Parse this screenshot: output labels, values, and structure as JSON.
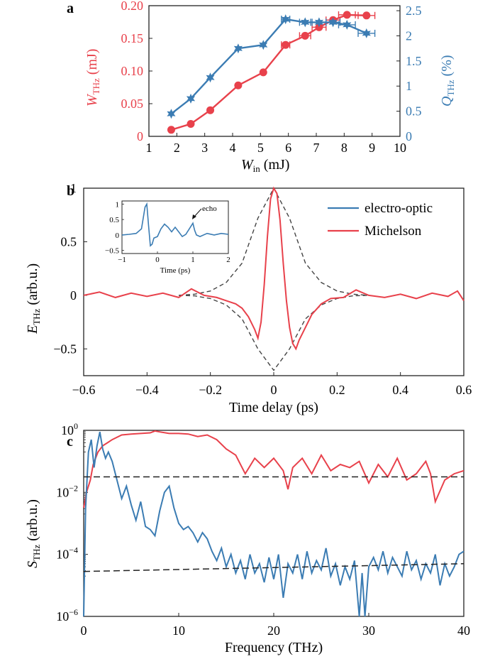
{
  "figure": {
    "panel_labels": [
      "a",
      "b",
      "c"
    ]
  },
  "chart_data": [
    {
      "panel": "a",
      "type": "line",
      "x_axis": {
        "label_main": "W",
        "label_sub": "in",
        "label_unit": " (mJ)",
        "range": [
          1,
          10
        ],
        "ticks": [
          1,
          2,
          3,
          4,
          5,
          6,
          7,
          8,
          9,
          10
        ]
      },
      "y_left": {
        "label_main": "W",
        "label_sub": "THz",
        "label_unit": " (mJ)",
        "range": [
          0,
          0.2
        ],
        "ticks": [
          "0",
          "0.05",
          "0.10",
          "0.15",
          "0.20"
        ],
        "tick_values": [
          0,
          0.05,
          0.1,
          0.15,
          0.2
        ],
        "color": "#e8414b"
      },
      "y_right": {
        "label_main": "Q",
        "label_sub": "THz",
        "label_unit": " (%)",
        "range": [
          0,
          2.6
        ],
        "ticks": [
          "0",
          "0.5",
          "1",
          "1.5",
          "2",
          "2.5"
        ],
        "tick_values": [
          0,
          0.5,
          1,
          1.5,
          2,
          2.5
        ],
        "color": "#3b7cb3"
      },
      "series": [
        {
          "axis": "left",
          "color": "#e8414b",
          "marker": "circle",
          "x": [
            1.8,
            2.5,
            3.2,
            4.2,
            5.1,
            5.9,
            6.6,
            7.1,
            7.6,
            8.1,
            8.8
          ],
          "y": [
            0.01,
            0.019,
            0.04,
            0.078,
            0.098,
            0.14,
            0.154,
            0.167,
            0.178,
            0.186,
            0.185
          ],
          "xerr": [
            0,
            0,
            0,
            0,
            0,
            0.15,
            0.2,
            0.25,
            0.25,
            0.3,
            0.3
          ]
        },
        {
          "axis": "right",
          "color": "#3b7cb3",
          "marker": "star",
          "x": [
            1.8,
            2.5,
            3.2,
            4.2,
            5.1,
            5.9,
            6.6,
            7.1,
            7.6,
            8.1,
            8.8
          ],
          "y": [
            0.45,
            0.75,
            1.17,
            1.75,
            1.82,
            2.33,
            2.27,
            2.27,
            2.27,
            2.22,
            2.05
          ],
          "xerr": [
            0,
            0,
            0,
            0,
            0,
            0.15,
            0.2,
            0.25,
            0.25,
            0.3,
            0.3
          ]
        }
      ]
    },
    {
      "panel": "b",
      "type": "line",
      "x_axis": {
        "label": "Time delay (ps)",
        "range": [
          -0.6,
          0.6
        ],
        "ticks": [
          "−0.6",
          "−0.4",
          "−0.2",
          "0",
          "0.2",
          "0.4",
          "0.6"
        ],
        "tick_values": [
          -0.6,
          -0.4,
          -0.2,
          0,
          0.2,
          0.4,
          0.6
        ]
      },
      "y_axis": {
        "label_main": "E",
        "label_sub": "THz",
        "label_unit": " (arb.u.)",
        "range": [
          -0.75,
          1
        ],
        "ticks": [
          "−0.5",
          "0",
          "0.5",
          "1"
        ],
        "tick_values": [
          -0.5,
          0,
          0.5,
          1
        ]
      },
      "legend": {
        "placement": "top-right",
        "entries": [
          {
            "label": "electro-optic",
            "color": "#3b7cb3"
          },
          {
            "label": "Michelson",
            "color": "#e8414b"
          }
        ]
      },
      "series": [
        {
          "name": "Michelson",
          "color": "#e8414b",
          "x": [
            -0.6,
            -0.55,
            -0.5,
            -0.45,
            -0.4,
            -0.35,
            -0.3,
            -0.26,
            -0.22,
            -0.18,
            -0.15,
            -0.12,
            -0.1,
            -0.08,
            -0.06,
            -0.05,
            -0.04,
            -0.03,
            -0.02,
            -0.01,
            0,
            0.01,
            0.02,
            0.03,
            0.04,
            0.05,
            0.06,
            0.07,
            0.08,
            0.1,
            0.12,
            0.15,
            0.18,
            0.22,
            0.26,
            0.3,
            0.35,
            0.4,
            0.45,
            0.5,
            0.55,
            0.58,
            0.6
          ],
          "y": [
            0.0,
            0.03,
            -0.02,
            0.02,
            -0.01,
            0.02,
            -0.02,
            0.06,
            0.0,
            -0.02,
            -0.05,
            -0.08,
            -0.12,
            -0.2,
            -0.32,
            -0.4,
            -0.25,
            0.1,
            0.55,
            0.9,
            1.0,
            0.95,
            0.7,
            0.3,
            -0.05,
            -0.3,
            -0.45,
            -0.5,
            -0.42,
            -0.3,
            -0.18,
            -0.08,
            -0.03,
            -0.02,
            0.05,
            0.0,
            -0.02,
            0.01,
            -0.03,
            0.02,
            -0.01,
            0.04,
            -0.05
          ]
        },
        {
          "name": "envelope",
          "color": "#444444",
          "dashed": true,
          "x": [
            -0.3,
            -0.25,
            -0.2,
            -0.15,
            -0.1,
            -0.05,
            0,
            0.05,
            0.1,
            0.15,
            0.2,
            0.25,
            0.3
          ],
          "y_upper": [
            0.0,
            0.01,
            0.04,
            0.12,
            0.3,
            0.72,
            1.0,
            0.72,
            0.3,
            0.12,
            0.04,
            0.01,
            0.0
          ],
          "y_lower": [
            0.0,
            -0.005,
            -0.03,
            -0.09,
            -0.22,
            -0.5,
            -0.7,
            -0.5,
            -0.22,
            -0.09,
            -0.03,
            -0.005,
            0.0
          ]
        }
      ],
      "inset": {
        "x_label": "Time (ps)",
        "x_range": [
          -1,
          2
        ],
        "x_ticks": [
          "−1",
          "0",
          "1",
          "2"
        ],
        "x_tick_values": [
          -1,
          0,
          1,
          2
        ],
        "y_range": [
          -0.6,
          1.1
        ],
        "y_ticks": [
          "1",
          "0.5",
          "0",
          "−0.5"
        ],
        "y_tick_values": [
          1,
          0.5,
          0,
          -0.5
        ],
        "annotation": "echo",
        "series": {
          "color": "#3b7cb3",
          "x": [
            -1,
            -0.8,
            -0.6,
            -0.45,
            -0.35,
            -0.3,
            -0.25,
            -0.2,
            -0.15,
            -0.1,
            0,
            0.1,
            0.2,
            0.3,
            0.4,
            0.5,
            0.6,
            0.7,
            0.8,
            0.9,
            1.0,
            1.05,
            1.1,
            1.2,
            1.4,
            1.6,
            1.8,
            2.0
          ],
          "y": [
            0.0,
            0.02,
            0.05,
            0.2,
            0.9,
            1.0,
            0.3,
            -0.35,
            -0.3,
            -0.1,
            -0.05,
            0.2,
            0.35,
            0.25,
            0.1,
            0.25,
            0.1,
            -0.05,
            0.02,
            0.2,
            0.38,
            0.15,
            0.0,
            -0.05,
            0.05,
            0.0,
            0.05,
            0.02
          ]
        }
      }
    },
    {
      "panel": "c",
      "type": "line",
      "x_axis": {
        "label": "Frequency (THz)",
        "range": [
          0,
          40
        ],
        "ticks": [
          "0",
          "10",
          "20",
          "30",
          "40"
        ],
        "tick_values": [
          0,
          10,
          20,
          30,
          40
        ]
      },
      "y_axis": {
        "label_main": "S",
        "label_sub": "THz",
        "label_unit": " (arb.u.)",
        "scale": "log",
        "range_log10": [
          -6,
          0
        ],
        "ticks": [
          {
            "base": "10",
            "exp": "0",
            "value": 0
          },
          {
            "base": "10",
            "exp": "−2",
            "value": -2
          },
          {
            "base": "10",
            "exp": "−4",
            "value": -4
          },
          {
            "base": "10",
            "exp": "−6",
            "value": -6
          }
        ]
      },
      "series": [
        {
          "name": "Michelson",
          "color": "#e8414b",
          "x": [
            0,
            0.3,
            0.7,
            1,
            1.5,
            2,
            2.5,
            3,
            4,
            5,
            6,
            7,
            7.5,
            8,
            9,
            10,
            11,
            12,
            13,
            14,
            15,
            16,
            17,
            18,
            19,
            20,
            21,
            21.5,
            22,
            23,
            24,
            25,
            26,
            27,
            28,
            29,
            30,
            31,
            32,
            33,
            34,
            35,
            36,
            36.5,
            37,
            38,
            39,
            40
          ],
          "log10_y": [
            -2.5,
            -2.0,
            -1.6,
            -1.1,
            -0.7,
            -0.5,
            -0.4,
            -0.3,
            -0.15,
            -0.12,
            -0.1,
            -0.08,
            -0.02,
            -0.05,
            -0.1,
            -0.1,
            -0.12,
            -0.2,
            -0.15,
            -0.3,
            -0.6,
            -0.8,
            -1.4,
            -0.9,
            -1.2,
            -0.9,
            -1.3,
            -1.9,
            -1.2,
            -0.9,
            -1.4,
            -0.8,
            -1.3,
            -1.1,
            -1.2,
            -1.0,
            -1.7,
            -1.1,
            -1.5,
            -0.9,
            -1.6,
            -1.4,
            -1.0,
            -1.4,
            -2.3,
            -1.6,
            -1.4,
            -1.3
          ]
        },
        {
          "name": "electro-optic",
          "color": "#3b7cb3",
          "x": [
            0,
            0.2,
            0.5,
            0.8,
            1.1,
            1.4,
            1.7,
            2.0,
            2.3,
            2.6,
            3.0,
            3.5,
            4.0,
            4.5,
            5.0,
            5.5,
            6.0,
            6.5,
            7.0,
            7.5,
            8.0,
            8.5,
            9.0,
            9.5,
            10.0,
            10.5,
            11.0,
            11.5,
            12.0,
            12.5,
            13.0,
            13.5,
            14.0,
            14.5,
            15.0,
            15.5,
            16.0,
            16.5,
            17.0,
            17.5,
            18.0,
            18.5,
            19.0,
            19.5,
            20.0,
            20.5,
            21.0,
            21.5,
            22.0,
            22.5,
            23.0,
            23.5,
            24.0,
            24.5,
            25.0,
            25.5,
            26.0,
            26.5,
            27.0,
            27.5,
            28.0,
            28.5,
            29.0,
            29.3,
            29.6,
            30.0,
            30.5,
            31.0,
            31.5,
            32.0,
            32.5,
            33.0,
            33.5,
            34.0,
            34.5,
            35.0,
            35.5,
            36.0,
            36.5,
            37.0,
            37.5,
            38.0,
            38.5,
            39.0,
            39.5,
            40.0
          ],
          "log10_y": [
            -6.0,
            -2.5,
            -0.7,
            -0.3,
            -1.2,
            -0.5,
            -0.05,
            -0.6,
            -0.9,
            -0.7,
            -1.0,
            -1.6,
            -2.2,
            -1.8,
            -2.4,
            -2.9,
            -2.3,
            -3.1,
            -3.2,
            -3.4,
            -2.6,
            -2.0,
            -1.8,
            -2.5,
            -3.0,
            -3.2,
            -3.1,
            -3.3,
            -3.6,
            -3.3,
            -3.5,
            -3.9,
            -4.2,
            -3.8,
            -4.4,
            -4.0,
            -4.6,
            -4.2,
            -4.8,
            -4.0,
            -4.6,
            -4.3,
            -4.9,
            -4.1,
            -4.8,
            -4.0,
            -5.4,
            -4.3,
            -4.6,
            -4.0,
            -4.8,
            -3.9,
            -4.6,
            -4.2,
            -4.5,
            -3.8,
            -4.7,
            -4.3,
            -5.0,
            -4.4,
            -4.8,
            -4.2,
            -6.0,
            -4.6,
            -6.0,
            -4.4,
            -4.1,
            -4.5,
            -3.9,
            -4.6,
            -4.1,
            -4.4,
            -4.7,
            -3.9,
            -4.5,
            -4.2,
            -4.8,
            -4.3,
            -4.6,
            -4.0,
            -5.0,
            -4.3,
            -4.7,
            -4.4,
            -4.0,
            -3.9
          ]
        },
        {
          "name": "upper-noise-floor",
          "color": "#222222",
          "dashed": true,
          "x": [
            0,
            40
          ],
          "log10_y": [
            -1.5,
            -1.5
          ]
        },
        {
          "name": "lower-noise-floor",
          "color": "#222222",
          "dashed": true,
          "x": [
            0,
            40
          ],
          "log10_y": [
            -4.55,
            -4.3
          ]
        }
      ]
    }
  ]
}
